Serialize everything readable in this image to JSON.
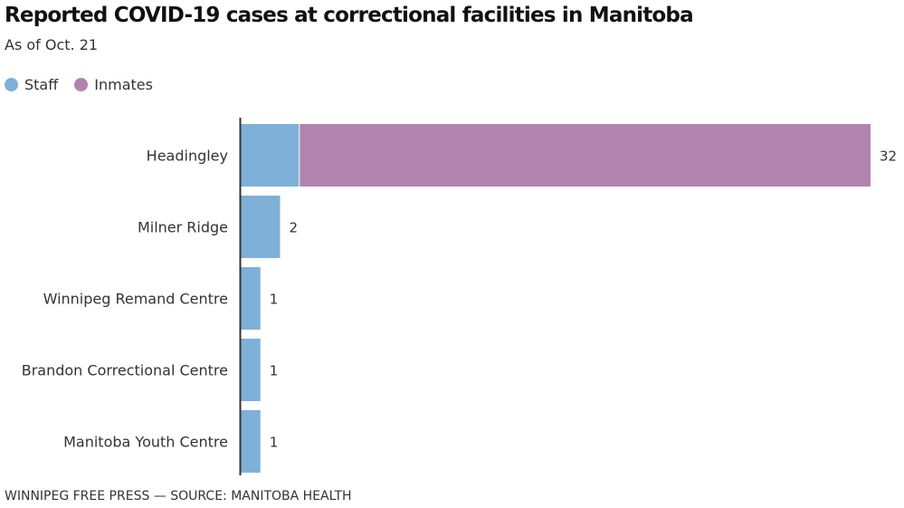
{
  "chart_data": {
    "type": "bar",
    "orientation": "horizontal",
    "stacked": true,
    "title": "Reported COVID-19 cases at correctional facilities in Manitoba",
    "subtitle": "As of Oct. 21",
    "categories": [
      "Headingley",
      "Milner Ridge",
      "Winnipeg Remand Centre",
      "Brandon Correctional Centre",
      "Manitoba Youth Centre"
    ],
    "series": [
      {
        "name": "Staff",
        "color": "#7eb0d8",
        "values": [
          3,
          2,
          1,
          1,
          1
        ]
      },
      {
        "name": "Inmates",
        "color": "#b183ae",
        "values": [
          29,
          0,
          0,
          0,
          0
        ]
      }
    ],
    "totals": [
      "32",
      "2",
      "1",
      "1",
      "1"
    ],
    "xlim": [
      0,
      32
    ],
    "grid": false,
    "legend_position": "top-left"
  },
  "footer": "WINNIPEG FREE PRESS — SOURCE: MANITOBA HEALTH"
}
